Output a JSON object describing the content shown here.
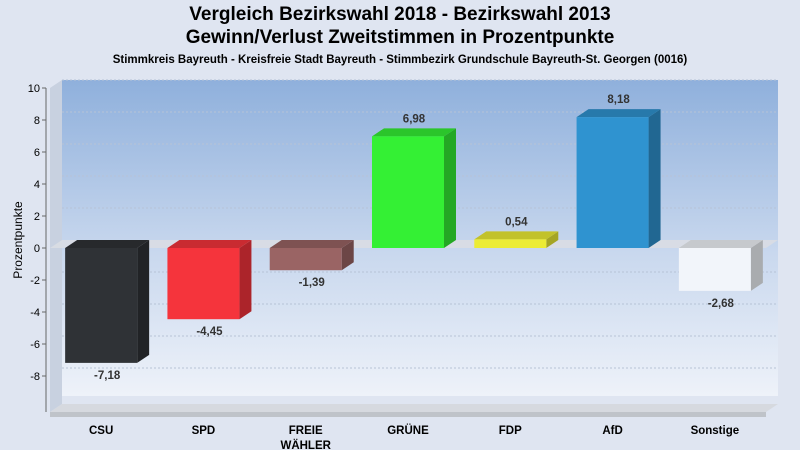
{
  "chart_data": {
    "type": "bar",
    "title": "Vergleich Bezirkswahl 2018 - Bezirkswahl 2013",
    "subtitle": "Gewinn/Verlust Zweitstimmen in Prozentpunkte",
    "subtitle2": "Stimmkreis Bayreuth - Kreisfreie Stadt Bayreuth - Stimmbezirk Grundschule Bayreuth-St. Georgen (0016)",
    "xlabel": "",
    "ylabel": "Prozentpunkte",
    "ylim": [
      -9.5,
      10
    ],
    "yticks": [
      -8,
      -6,
      -4,
      -2,
      0,
      2,
      4,
      6,
      8,
      10
    ],
    "grid": true,
    "categories": [
      [
        "CSU"
      ],
      [
        "SPD"
      ],
      [
        "FREIE",
        "WÄHLER"
      ],
      [
        "GRÜNE"
      ],
      [
        "FDP"
      ],
      [
        "AfD"
      ],
      [
        "Sonstige"
      ]
    ],
    "values": [
      -7.18,
      -4.45,
      -1.39,
      6.98,
      0.54,
      8.18,
      -2.68
    ],
    "value_labels": [
      "-7,18",
      "-4,45",
      "-1,39",
      "6,98",
      "0,54",
      "8,18",
      "-2,68"
    ],
    "colors": [
      "#2f3236",
      "#f5343c",
      "#9a6464",
      "#34f034",
      "#ecec34",
      "#2f93d0",
      "#f2f5fa"
    ]
  }
}
